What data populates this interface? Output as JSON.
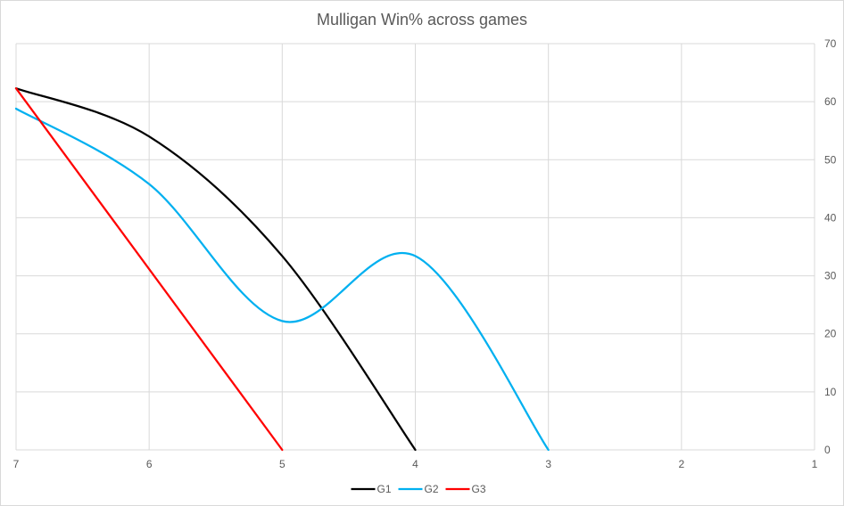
{
  "chart_data": {
    "type": "line",
    "title": "Mulligan Win% across games",
    "xlabel": "",
    "ylabel": "",
    "x_reversed": true,
    "xlim": [
      1,
      7
    ],
    "ylim": [
      0,
      70
    ],
    "x_ticks": [
      7,
      6,
      5,
      4,
      3,
      2,
      1
    ],
    "y_ticks": [
      0,
      10,
      20,
      30,
      40,
      50,
      60,
      70
    ],
    "y_axis_position": "right",
    "grid": true,
    "smooth": true,
    "legend_position": "bottom",
    "series": [
      {
        "name": "G1",
        "color": "#000000",
        "x": [
          7,
          6,
          5,
          4
        ],
        "y": [
          62.3,
          54,
          33.4,
          0
        ]
      },
      {
        "name": "G2",
        "color": "#00b0f0",
        "x": [
          7,
          6,
          5,
          4,
          3
        ],
        "y": [
          58.8,
          45.8,
          22.2,
          33.4,
          0
        ]
      },
      {
        "name": "G3",
        "color": "#ff0000",
        "x": [
          7,
          5
        ],
        "y": [
          62.3,
          0
        ]
      }
    ]
  }
}
